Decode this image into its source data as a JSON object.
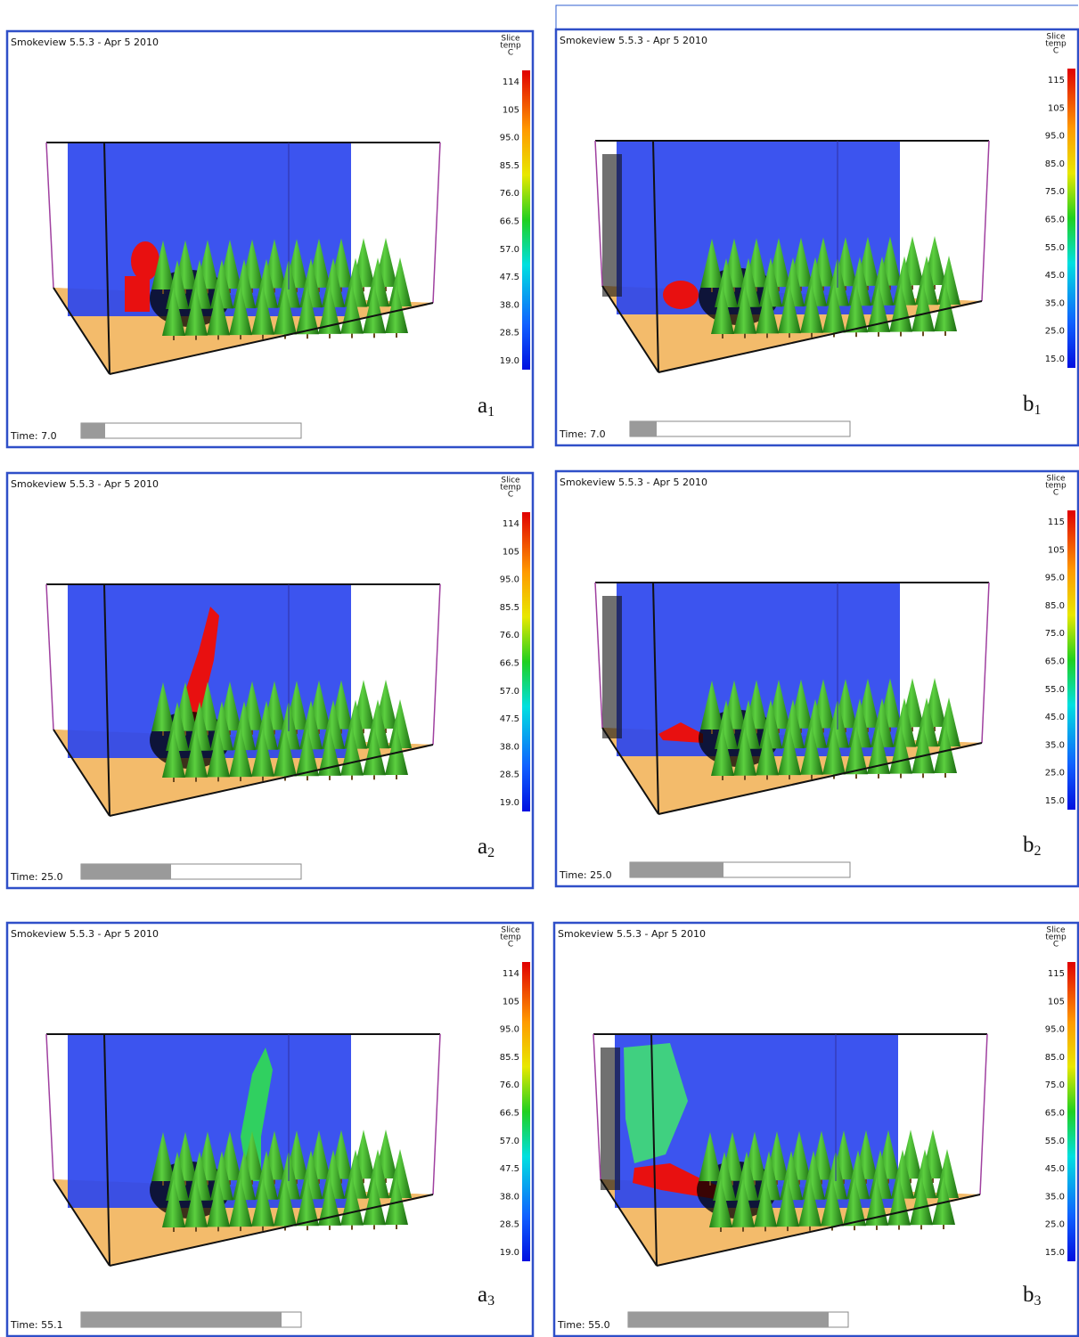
{
  "panels": [
    {
      "header": "Smokeview 5.5.3 -  Apr  5 2010",
      "colorbar": {
        "title": [
          "Slice",
          "temp",
          "C"
        ],
        "ticks": [
          "114",
          "105",
          "95.0",
          "85.5",
          "76.0",
          "66.5",
          "57.0",
          "47.5",
          "38.0",
          "28.5",
          "19.0"
        ]
      },
      "time": "Time:  7.0",
      "label": {
        "letter": "a",
        "index": "1"
      }
    },
    {
      "header": "Smokeview 5.5.3 -  Apr  5 2010",
      "colorbar": {
        "title": [
          "Slice",
          "temp",
          "C"
        ],
        "ticks": [
          "115",
          "105",
          "95.0",
          "85.0",
          "75.0",
          "65.0",
          "55.0",
          "45.0",
          "35.0",
          "25.0",
          "15.0"
        ]
      },
      "time": "Time:  7.0",
      "label": {
        "letter": "b",
        "index": "1"
      }
    },
    {
      "header": "Smokeview 5.5.3 -  Apr  5 2010",
      "colorbar": {
        "title": [
          "Slice",
          "temp",
          "C"
        ],
        "ticks": [
          "114",
          "105",
          "95.0",
          "85.5",
          "76.0",
          "66.5",
          "57.0",
          "47.5",
          "38.0",
          "28.5",
          "19.0"
        ]
      },
      "time": "Time: 25.0",
      "label": {
        "letter": "a",
        "index": "2"
      }
    },
    {
      "header": "Smokeview 5.5.3 -  Apr  5 2010",
      "colorbar": {
        "title": [
          "Slice",
          "temp",
          "C"
        ],
        "ticks": [
          "115",
          "105",
          "95.0",
          "85.0",
          "75.0",
          "65.0",
          "55.0",
          "45.0",
          "35.0",
          "25.0",
          "15.0"
        ]
      },
      "time": "Time: 25.0",
      "label": {
        "letter": "b",
        "index": "2"
      }
    },
    {
      "header": "Smokeview 5.5.3 -  Apr  5 2010",
      "colorbar": {
        "title": [
          "Slice",
          "temp",
          "C"
        ],
        "ticks": [
          "114",
          "105",
          "95.0",
          "85.5",
          "76.0",
          "66.5",
          "57.0",
          "47.5",
          "38.0",
          "28.5",
          "19.0"
        ]
      },
      "time": "Time: 55.1",
      "label": {
        "letter": "a",
        "index": "3"
      }
    },
    {
      "header": "Smokeview 5.5.3 -  Apr  5 2010",
      "colorbar": {
        "title": [
          "Slice",
          "temp",
          "C"
        ],
        "ticks": [
          "115",
          "105",
          "95.0",
          "85.0",
          "75.0",
          "65.0",
          "55.0",
          "45.0",
          "35.0",
          "25.0",
          "15.0"
        ]
      },
      "time": "Time: 55.0",
      "label": {
        "letter": "b",
        "index": "3"
      }
    }
  ]
}
